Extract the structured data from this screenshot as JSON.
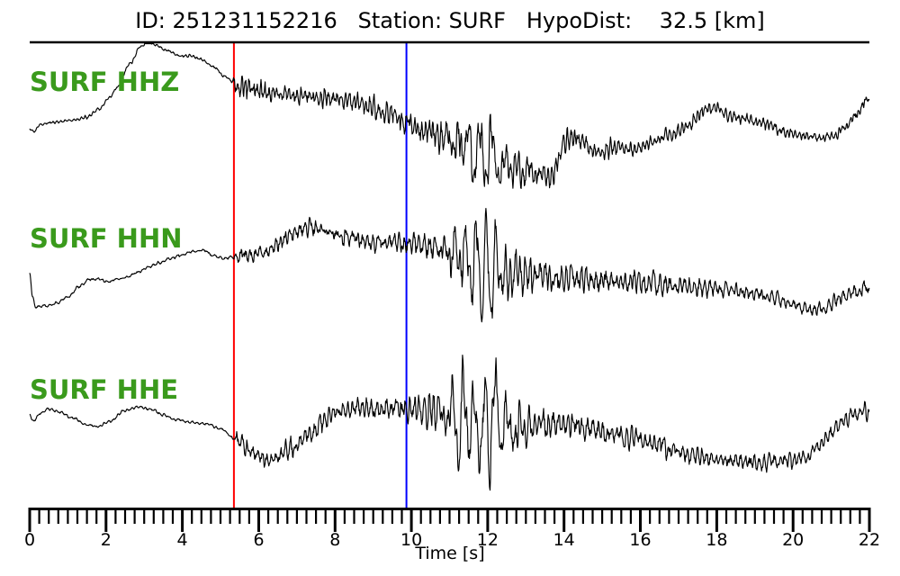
{
  "figure": {
    "title": "ID: 251231152216   Station: SURF   HypoDist:    32.5 [km]"
  },
  "chart_data": {
    "type": "line",
    "title": "ID: 251231152216   Station: SURF   HypoDist:    32.5 [km]",
    "event_id": "251231152216",
    "station": "SURF",
    "hypodist_km": 32.5,
    "xlabel": "Time [s]",
    "xlim": [
      0,
      22
    ],
    "x_major_ticks": [
      0,
      2,
      4,
      6,
      8,
      10,
      12,
      14,
      16,
      18,
      20,
      22
    ],
    "x_minor_tick_step": 0.25,
    "grid": false,
    "legend": "none",
    "trace_label_color": "#3a9a1c",
    "waveform_color": "#000000",
    "picks": {
      "p_pick_time_s": 5.35,
      "p_pick_color": "#ff0000",
      "s_pick_time_s": 9.87,
      "s_pick_color": "#0000ff"
    },
    "traces": [
      {
        "name": "SURF HHZ",
        "seed": 11,
        "hf_freq": 9.5,
        "s_freq": 3.2,
        "drift": [
          [
            0,
            143
          ],
          [
            0.1,
            146
          ],
          [
            0.3,
            138
          ],
          [
            0.64,
            136
          ],
          [
            1.0,
            134
          ],
          [
            1.23,
            133
          ],
          [
            1.5,
            130
          ],
          [
            1.82,
            121
          ],
          [
            2.1,
            108
          ],
          [
            2.29,
            97
          ],
          [
            2.64,
            70
          ],
          [
            2.9,
            52
          ],
          [
            3.1,
            46
          ],
          [
            3.3,
            50
          ],
          [
            3.58,
            56
          ],
          [
            3.94,
            62
          ],
          [
            4.2,
            62
          ],
          [
            4.5,
            66
          ],
          [
            4.8,
            74
          ],
          [
            5.12,
            85
          ],
          [
            5.35,
            92
          ],
          [
            5.6,
            97
          ],
          [
            6.0,
            101
          ],
          [
            6.5,
            104
          ],
          [
            7.0,
            106
          ],
          [
            7.5,
            108
          ],
          [
            8.0,
            110
          ],
          [
            8.5,
            113
          ],
          [
            9.0,
            120
          ],
          [
            9.5,
            128
          ],
          [
            9.87,
            137
          ],
          [
            10.3,
            145
          ],
          [
            10.8,
            152
          ],
          [
            11.3,
            160
          ],
          [
            11.8,
            170
          ],
          [
            12.2,
            178
          ],
          [
            12.6,
            185
          ],
          [
            13.0,
            191
          ],
          [
            13.4,
            193
          ],
          [
            13.6,
            197
          ],
          [
            14.2,
            151
          ],
          [
            14.9,
            169
          ],
          [
            15.3,
            164
          ],
          [
            15.8,
            166
          ],
          [
            16.3,
            158
          ],
          [
            16.8,
            150
          ],
          [
            17.2,
            140
          ],
          [
            17.7,
            123
          ],
          [
            18.0,
            119
          ],
          [
            18.4,
            130
          ],
          [
            18.8,
            133
          ],
          [
            19.3,
            138
          ],
          [
            19.8,
            147
          ],
          [
            20.3,
            151
          ],
          [
            20.8,
            153
          ],
          [
            21.1,
            150
          ],
          [
            21.4,
            140
          ],
          [
            21.7,
            126
          ],
          [
            21.93,
            110
          ],
          [
            22,
            113
          ]
        ],
        "hf_env": [
          [
            0,
            1.5
          ],
          [
            5.3,
            1.5
          ],
          [
            5.42,
            14
          ],
          [
            6.0,
            12
          ],
          [
            6.6,
            10
          ],
          [
            7.2,
            9
          ],
          [
            8.0,
            11
          ],
          [
            8.7,
            10
          ],
          [
            9.4,
            13
          ],
          [
            9.87,
            14
          ],
          [
            10.4,
            16
          ],
          [
            10.9,
            18
          ],
          [
            11.4,
            20
          ],
          [
            11.9,
            22
          ],
          [
            12.3,
            18
          ],
          [
            12.8,
            15
          ],
          [
            13.4,
            13
          ],
          [
            14.1,
            11
          ],
          [
            15.0,
            9
          ],
          [
            16.0,
            8
          ],
          [
            17.0,
            7
          ],
          [
            18.0,
            6.5
          ],
          [
            19.0,
            6
          ],
          [
            20.0,
            5.5
          ],
          [
            21.0,
            5.5
          ],
          [
            22,
            6.5
          ]
        ],
        "s_env": [
          [
            0,
            0
          ],
          [
            10.6,
            0
          ],
          [
            11.0,
            8
          ],
          [
            11.35,
            22
          ],
          [
            11.7,
            30
          ],
          [
            12.0,
            34
          ],
          [
            12.25,
            22
          ],
          [
            12.6,
            10
          ],
          [
            13.1,
            4
          ],
          [
            13.5,
            0
          ]
        ]
      },
      {
        "name": "SURF HHN",
        "seed": 23,
        "hf_freq": 7.5,
        "s_freq": 3.6,
        "drift": [
          [
            0,
            304
          ],
          [
            0.08,
            330
          ],
          [
            0.15,
            341
          ],
          [
            0.4,
            340
          ],
          [
            0.7,
            337
          ],
          [
            1.0,
            330
          ],
          [
            1.3,
            318
          ],
          [
            1.55,
            311
          ],
          [
            1.8,
            310
          ],
          [
            2.05,
            313
          ],
          [
            2.3,
            310
          ],
          [
            2.55,
            308
          ],
          [
            2.8,
            303
          ],
          [
            3.1,
            297
          ],
          [
            3.4,
            292
          ],
          [
            3.7,
            287
          ],
          [
            4.0,
            283
          ],
          [
            4.3,
            279
          ],
          [
            4.55,
            278
          ],
          [
            4.8,
            284
          ],
          [
            5.1,
            287
          ],
          [
            5.35,
            285
          ],
          [
            5.7,
            284
          ],
          [
            6.1,
            281
          ],
          [
            6.5,
            272
          ],
          [
            6.9,
            259
          ],
          [
            7.25,
            252
          ],
          [
            7.6,
            255
          ],
          [
            8.0,
            260
          ],
          [
            8.4,
            265
          ],
          [
            8.8,
            268
          ],
          [
            9.2,
            270
          ],
          [
            9.6,
            269
          ],
          [
            9.87,
            270
          ],
          [
            10.3,
            272
          ],
          [
            10.8,
            277
          ],
          [
            11.3,
            285
          ],
          [
            11.8,
            295
          ],
          [
            12.3,
            302
          ],
          [
            12.8,
            305
          ],
          [
            13.3,
            307
          ],
          [
            14.0,
            309
          ],
          [
            14.8,
            311
          ],
          [
            15.6,
            313
          ],
          [
            16.4,
            315
          ],
          [
            17.2,
            318
          ],
          [
            18.0,
            321
          ],
          [
            18.8,
            325
          ],
          [
            19.5,
            331
          ],
          [
            20.0,
            338
          ],
          [
            20.45,
            345
          ],
          [
            20.8,
            342
          ],
          [
            21.2,
            333
          ],
          [
            21.6,
            324
          ],
          [
            21.9,
            320
          ],
          [
            22,
            321
          ]
        ],
        "hf_env": [
          [
            0,
            1.5
          ],
          [
            5.3,
            1.5
          ],
          [
            5.45,
            9
          ],
          [
            6.2,
            8
          ],
          [
            7.0,
            10
          ],
          [
            7.8,
            9
          ],
          [
            8.6,
            9
          ],
          [
            9.4,
            10
          ],
          [
            9.87,
            12
          ],
          [
            10.3,
            14
          ],
          [
            10.7,
            18
          ],
          [
            11.1,
            24
          ],
          [
            11.5,
            26
          ],
          [
            12.0,
            24
          ],
          [
            12.4,
            26
          ],
          [
            12.9,
            22
          ],
          [
            13.4,
            19
          ],
          [
            14.0,
            17
          ],
          [
            14.7,
            15
          ],
          [
            15.5,
            13
          ],
          [
            16.3,
            12
          ],
          [
            17.2,
            10
          ],
          [
            18.1,
            9
          ],
          [
            19.0,
            8
          ],
          [
            20.0,
            7
          ],
          [
            21.0,
            7
          ],
          [
            22,
            8
          ]
        ],
        "s_env": [
          [
            0,
            0
          ],
          [
            10.5,
            0
          ],
          [
            10.9,
            14
          ],
          [
            11.2,
            34
          ],
          [
            11.5,
            30
          ],
          [
            11.8,
            72
          ],
          [
            12.1,
            68
          ],
          [
            12.4,
            26
          ],
          [
            12.7,
            12
          ],
          [
            13.1,
            5
          ],
          [
            13.6,
            0
          ]
        ]
      },
      {
        "name": "SURF HHE",
        "seed": 37,
        "hf_freq": 8.0,
        "s_freq": 3.4,
        "drift": [
          [
            0,
            460
          ],
          [
            0.08,
            468
          ],
          [
            0.3,
            459
          ],
          [
            0.5,
            454
          ],
          [
            0.8,
            458
          ],
          [
            1.1,
            464
          ],
          [
            1.5,
            472
          ],
          [
            1.8,
            474
          ],
          [
            2.1,
            468
          ],
          [
            2.5,
            456
          ],
          [
            2.85,
            452
          ],
          [
            3.2,
            455
          ],
          [
            3.5,
            461
          ],
          [
            3.8,
            466
          ],
          [
            4.2,
            469
          ],
          [
            4.6,
            471
          ],
          [
            5.0,
            476
          ],
          [
            5.35,
            487
          ],
          [
            5.7,
            497
          ],
          [
            6.0,
            507
          ],
          [
            6.2,
            512
          ],
          [
            6.5,
            508
          ],
          [
            6.9,
            497
          ],
          [
            7.3,
            483
          ],
          [
            7.7,
            468
          ],
          [
            8.0,
            459
          ],
          [
            8.4,
            454
          ],
          [
            8.8,
            453
          ],
          [
            9.2,
            456
          ],
          [
            9.6,
            452
          ],
          [
            9.87,
            453
          ],
          [
            10.3,
            455
          ],
          [
            10.8,
            460
          ],
          [
            11.3,
            465
          ],
          [
            11.8,
            468
          ],
          [
            12.3,
            472
          ],
          [
            12.8,
            476
          ],
          [
            13.3,
            473
          ],
          [
            13.8,
            470
          ],
          [
            14.3,
            473
          ],
          [
            14.8,
            478
          ],
          [
            15.3,
            482
          ],
          [
            15.8,
            487
          ],
          [
            16.3,
            492
          ],
          [
            16.8,
            499
          ],
          [
            17.3,
            505
          ],
          [
            17.8,
            510
          ],
          [
            18.3,
            512
          ],
          [
            18.8,
            513
          ],
          [
            19.3,
            514
          ],
          [
            19.8,
            512
          ],
          [
            20.3,
            508
          ],
          [
            20.7,
            496
          ],
          [
            21.0,
            480
          ],
          [
            21.3,
            467
          ],
          [
            21.6,
            462
          ],
          [
            21.9,
            457
          ],
          [
            22,
            463
          ]
        ],
        "hf_env": [
          [
            0,
            1.5
          ],
          [
            5.3,
            1.5
          ],
          [
            5.45,
            8
          ],
          [
            6.2,
            9
          ],
          [
            7.0,
            11
          ],
          [
            7.8,
            12
          ],
          [
            8.6,
            11
          ],
          [
            9.4,
            12
          ],
          [
            9.87,
            13
          ],
          [
            10.3,
            16
          ],
          [
            10.7,
            20
          ],
          [
            11.1,
            24
          ],
          [
            11.5,
            24
          ],
          [
            12.0,
            24
          ],
          [
            12.4,
            24
          ],
          [
            12.9,
            20
          ],
          [
            13.5,
            16
          ],
          [
            14.2,
            14
          ],
          [
            15.0,
            12
          ],
          [
            16.0,
            11
          ],
          [
            17.0,
            10
          ],
          [
            18.0,
            9
          ],
          [
            19.0,
            9
          ],
          [
            20.0,
            8
          ],
          [
            21.0,
            8
          ],
          [
            22,
            8
          ]
        ],
        "s_env": [
          [
            0,
            0
          ],
          [
            10.6,
            0
          ],
          [
            11.0,
            20
          ],
          [
            11.25,
            66
          ],
          [
            11.55,
            40
          ],
          [
            11.85,
            50
          ],
          [
            12.1,
            66
          ],
          [
            12.4,
            28
          ],
          [
            12.8,
            12
          ],
          [
            13.2,
            4
          ],
          [
            13.6,
            0
          ]
        ]
      }
    ]
  }
}
